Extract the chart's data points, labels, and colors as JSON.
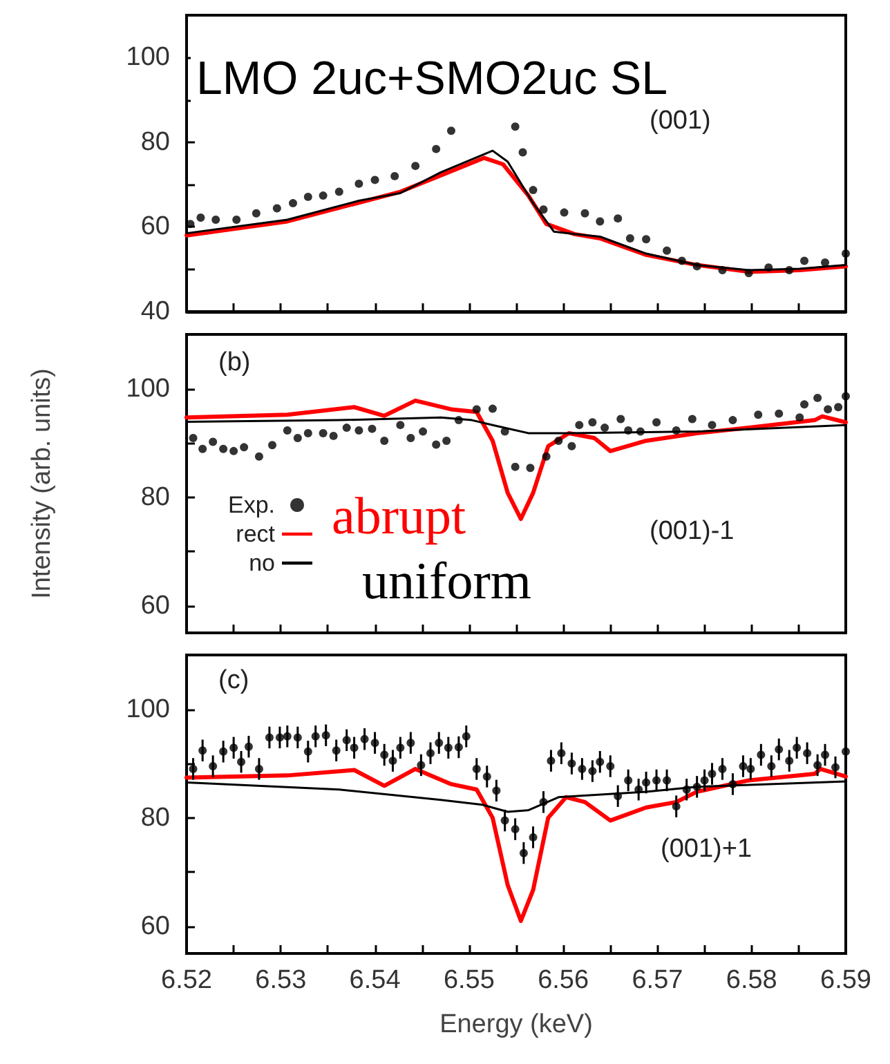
{
  "chart_data": [
    {
      "type": "line",
      "title": "LMO 2uc+SMO2uc SL",
      "annotations": [
        "(001)"
      ],
      "xlim": [
        6.52,
        6.59
      ],
      "xticks": [
        {
          "value": 6.52,
          "label": null
        },
        {
          "value": 6.525,
          "label": null
        },
        {
          "value": 6.53,
          "label": null
        },
        {
          "value": 6.535,
          "label": null
        },
        {
          "value": 6.54,
          "label": null
        },
        {
          "value": 6.545,
          "label": null
        },
        {
          "value": 6.55,
          "label": null
        },
        {
          "value": 6.555,
          "label": null
        },
        {
          "value": 6.56,
          "label": null
        },
        {
          "value": 6.565,
          "label": null
        },
        {
          "value": 6.57,
          "label": null
        },
        {
          "value": 6.575,
          "label": null
        },
        {
          "value": 6.58,
          "label": null
        },
        {
          "value": 6.585,
          "label": null
        },
        {
          "value": 6.59,
          "label": null
        }
      ],
      "ylim": [
        40,
        110
      ],
      "yticks": [
        40,
        {
          "value": 50,
          "label": null
        },
        60,
        {
          "value": 70,
          "label": null
        },
        80,
        {
          "value": 90,
          "label": null
        },
        100
      ],
      "tick_labels": "y",
      "series": [
        {
          "type": "scatter",
          "marker": "circle",
          "color": "#000000",
          "x": [
            6.5204,
            6.5215,
            6.5231,
            6.5253,
            6.5274,
            6.5296,
            6.5313,
            6.5329,
            6.5345,
            6.5362,
            6.5383,
            6.54,
            6.5421,
            6.5443,
            6.5465,
            6.5481,
            6.5549,
            6.5557,
            6.5568,
            6.5579,
            6.5601,
            6.5623,
            6.5639,
            6.5658,
            6.5671,
            6.5688,
            6.571,
            6.5726,
            6.5742,
            6.5769,
            6.5797,
            6.5818,
            6.584,
            6.5856,
            6.5878,
            6.59
          ],
          "values": [
            60.7,
            62.2,
            61.7,
            61.7,
            63.2,
            64.4,
            65.6,
            67.1,
            67.4,
            68.3,
            70.2,
            71.1,
            72,
            74.4,
            78.4,
            82.7,
            83.7,
            77.6,
            68.7,
            64.1,
            63.4,
            63.2,
            61.3,
            62,
            57.3,
            57.1,
            54.4,
            52,
            50.7,
            49.8,
            49.1,
            50.4,
            49.8,
            52,
            51.6,
            53.7
          ]
        },
        {
          "color": "#ff0000",
          "x": [
            6.52,
            6.5307,
            6.5427,
            6.5516,
            6.5536,
            6.5563,
            6.5582,
            6.5612,
            6.5639,
            6.5688,
            6.5742,
            6.5797,
            6.5851,
            6.59
          ],
          "values": [
            58,
            61.3,
            68.3,
            76.3,
            74.8,
            67.4,
            60.7,
            58.3,
            57.3,
            53.4,
            51,
            49.4,
            49.8,
            50.7
          ]
        },
        {
          "color": "#000000",
          "x": [
            6.52,
            6.5307,
            6.5383,
            6.5427,
            6.547,
            6.5525,
            6.5541,
            6.5568,
            6.559,
            6.5612,
            6.5639,
            6.5688,
            6.5742,
            6.5797,
            6.5851,
            6.59
          ],
          "values": [
            58.5,
            61.7,
            66.2,
            68,
            72.9,
            78,
            75.4,
            65.6,
            58.9,
            58.3,
            57.7,
            53.7,
            51,
            49.8,
            50.1,
            51
          ]
        }
      ]
    },
    {
      "type": "line",
      "ylabel": "Intensity (arb. units)",
      "annotations": [
        "(b)",
        "(001)-1",
        "abrupt",
        "uniform"
      ],
      "legend": "bottom left",
      "xlim": [
        6.52,
        6.59
      ],
      "xticks": [
        {
          "value": 6.52,
          "label": null
        },
        {
          "value": 6.525,
          "label": null
        },
        {
          "value": 6.53,
          "label": null
        },
        {
          "value": 6.535,
          "label": null
        },
        {
          "value": 6.54,
          "label": null
        },
        {
          "value": 6.545,
          "label": null
        },
        {
          "value": 6.55,
          "label": null
        },
        {
          "value": 6.555,
          "label": null
        },
        {
          "value": 6.56,
          "label": null
        },
        {
          "value": 6.565,
          "label": null
        },
        {
          "value": 6.57,
          "label": null
        },
        {
          "value": 6.575,
          "label": null
        },
        {
          "value": 6.58,
          "label": null
        },
        {
          "value": 6.585,
          "label": null
        },
        {
          "value": 6.59,
          "label": null
        }
      ],
      "ylim": [
        55,
        110
      ],
      "yticks": [
        60,
        {
          "value": 70,
          "label": null
        },
        80,
        {
          "value": 90,
          "label": null
        },
        100
      ],
      "tick_labels": "y",
      "series": [
        {
          "name": "Exp.",
          "type": "scatter",
          "marker": "circle",
          "color": "#000000",
          "x": [
            6.5207,
            6.5217,
            6.5228,
            6.5239,
            6.525,
            6.5261,
            6.5277,
            6.5291,
            6.5307,
            6.5318,
            6.5329,
            6.5345,
            6.5356,
            6.537,
            6.5383,
            6.5397,
            6.541,
            6.5427,
            6.5438,
            6.5451,
            6.5465,
            6.5476,
            6.5489,
            6.5508,
            6.5525,
            6.5538,
            6.5549,
            6.5565,
            6.5582,
            6.5595,
            6.5609,
            6.5617,
            6.5631,
            6.5644,
            6.5661,
            6.5669,
            6.5682,
            6.5699,
            6.572,
            6.5737,
            6.5758,
            6.578,
            6.5807,
            6.5829,
            6.5851,
            6.5856,
            6.587,
            6.5881,
            6.5892,
            6.59
          ],
          "values": [
            90.9,
            88.9,
            90.2,
            88.9,
            88.5,
            89.2,
            87.5,
            89.6,
            92.3,
            90.9,
            91.8,
            91.8,
            91.3,
            92.8,
            92.3,
            92.6,
            90.4,
            93.3,
            90.9,
            92.1,
            89.7,
            90.4,
            94.2,
            96.2,
            96.3,
            92.1,
            85.6,
            85.4,
            87.5,
            90.4,
            89.4,
            93.3,
            93.8,
            92.8,
            94.4,
            92.3,
            92.1,
            93.8,
            92.3,
            94.4,
            93.3,
            94.2,
            95.2,
            95.4,
            94.7,
            97.1,
            98.3,
            96.2,
            96.6,
            98.6
          ]
        },
        {
          "name": "rect",
          "color": "#ff0000",
          "x": [
            6.52,
            6.5307,
            6.5378,
            6.541,
            6.5443,
            6.5481,
            6.5508,
            6.5525,
            6.5541,
            6.5555,
            6.5568,
            6.5584,
            6.5606,
            6.5633,
            6.565,
            6.5688,
            6.5742,
            6.5797,
            6.5867,
            6.5875,
            6.59
          ],
          "values": [
            94.7,
            95.2,
            96.6,
            95,
            97.8,
            96.2,
            95.7,
            90.4,
            80.8,
            76,
            80.8,
            89.4,
            91.8,
            90.9,
            88.5,
            90.4,
            91.8,
            92.8,
            94.2,
            94.9,
            93.8
          ]
        },
        {
          "name": "no",
          "color": "#000000",
          "x": [
            6.52,
            6.5362,
            6.547,
            6.5503,
            6.5525,
            6.5563,
            6.5606,
            6.5742,
            6.59
          ],
          "values": [
            93.9,
            94.2,
            94.7,
            94.2,
            93.3,
            91.8,
            91.8,
            92.1,
            93.3
          ]
        }
      ]
    },
    {
      "type": "line",
      "xlabel": "Energy (keV)",
      "annotations": [
        "(c)",
        "(001)+1"
      ],
      "xlim": [
        6.52,
        6.59
      ],
      "xticks": [
        6.52,
        {
          "value": 6.525,
          "label": null
        },
        6.53,
        {
          "value": 6.535,
          "label": null
        },
        6.54,
        {
          "value": 6.545,
          "label": null
        },
        6.55,
        {
          "value": 6.555,
          "label": null
        },
        6.56,
        {
          "value": 6.565,
          "label": null
        },
        6.57,
        {
          "value": 6.575,
          "label": null
        },
        6.58,
        {
          "value": 6.585,
          "label": null
        },
        6.59
      ],
      "ylim": [
        55,
        110
      ],
      "yticks": [
        60,
        {
          "value": 70,
          "label": null
        },
        80,
        {
          "value": 90,
          "label": null
        },
        100
      ],
      "series": [
        {
          "type": "scatter",
          "marker": "circle",
          "color": "#000000",
          "x": [
            6.5207,
            6.5217,
            6.5228,
            6.5239,
            6.525,
            6.5258,
            6.5266,
            6.5277,
            6.5288,
            6.5299,
            6.5307,
            6.5318,
            6.5329,
            6.5337,
            6.5348,
            6.5359,
            6.537,
            6.5378,
            6.5389,
            6.54,
            6.541,
            6.5419,
            6.5427,
            6.5438,
            6.5449,
            6.5459,
            6.5468,
            6.5478,
            6.5489,
            6.5497,
            6.5508,
            6.5519,
            6.5529,
            6.5538,
            6.5549,
            6.5558,
            6.5568,
            6.5579,
            6.5587,
            6.5598,
            6.5609,
            6.562,
            6.5631,
            6.5639,
            6.565,
            6.5658,
            6.5669,
            6.568,
            6.5688,
            6.5699,
            6.571,
            6.572,
            6.5731,
            6.5742,
            6.575,
            6.5758,
            6.5769,
            6.578,
            6.5791,
            6.5799,
            6.581,
            6.5821,
            6.5829,
            6.584,
            6.5848,
            6.5859,
            6.587,
            6.5878,
            6.5889,
            6.59
          ],
          "values": [
            89,
            92.4,
            89.5,
            92.2,
            92.9,
            90.3,
            93.1,
            89,
            94.8,
            94.8,
            95,
            94.8,
            92.2,
            95,
            95.2,
            92.4,
            94.3,
            92.9,
            94.5,
            93.8,
            91.6,
            90.5,
            92.9,
            93.8,
            89.7,
            91.9,
            93.8,
            92.9,
            93,
            95,
            89,
            87.6,
            85,
            79.5,
            77.9,
            73.5,
            76.4,
            82.9,
            90.5,
            91.9,
            90,
            89,
            88.6,
            90.3,
            89.5,
            84,
            86.9,
            85.2,
            86.5,
            86.9,
            86.9,
            82.1,
            85.2,
            85.7,
            86.9,
            88.1,
            89,
            86.2,
            89.5,
            89,
            91.6,
            89.5,
            92.6,
            90.5,
            92.9,
            91.9,
            89.7,
            91.6,
            89.3,
            92.2
          ],
          "errors": [
            2,
            2,
            2,
            2,
            2,
            2,
            2,
            2,
            2,
            2,
            2,
            2,
            2,
            2,
            2,
            2,
            2,
            2,
            2,
            2,
            2,
            2,
            2,
            2,
            2,
            2,
            2,
            2,
            2,
            2,
            2,
            2,
            2,
            2,
            2,
            2,
            2,
            2,
            2,
            2,
            2,
            2,
            2,
            2,
            2,
            2,
            2,
            2,
            2,
            2,
            2,
            2,
            2,
            2,
            2,
            2,
            2,
            2,
            2,
            2,
            2,
            2,
            2,
            2,
            2,
            2,
            2,
            2,
            2,
            2
          ]
        },
        {
          "color": "#ff0000",
          "x": [
            6.52,
            6.5307,
            6.5378,
            6.541,
            6.5443,
            6.5481,
            6.5508,
            6.5525,
            6.5541,
            6.5555,
            6.5568,
            6.5584,
            6.5603,
            6.5623,
            6.565,
            6.5688,
            6.572,
            6.5742,
            6.5797,
            6.5867,
            6.5873,
            6.59
          ],
          "values": [
            87.4,
            87.8,
            88.8,
            85.9,
            89,
            86.2,
            85.2,
            80,
            67.6,
            61,
            66.7,
            80,
            83.8,
            82.9,
            79.5,
            81.9,
            82.9,
            84.8,
            86.9,
            88.1,
            89,
            87.6
          ]
        },
        {
          "color": "#000000",
          "x": [
            6.52,
            6.5362,
            6.547,
            6.5514,
            6.5541,
            6.5563,
            6.5595,
            6.5688,
            6.5742,
            6.59
          ],
          "values": [
            86.5,
            85.2,
            83.3,
            82.4,
            81.1,
            81.4,
            83.8,
            84.8,
            85.7,
            86.7
          ]
        }
      ]
    }
  ]
}
